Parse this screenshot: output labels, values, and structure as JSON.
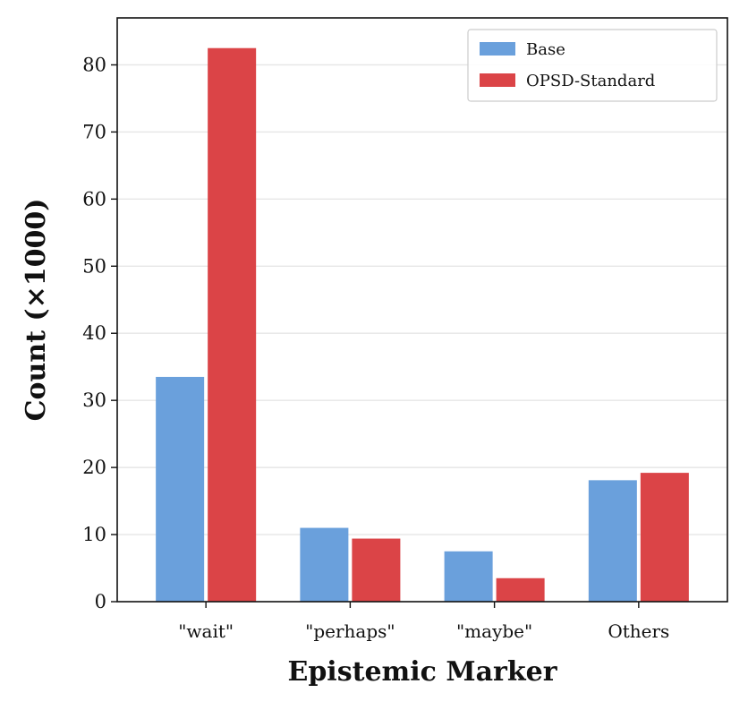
{
  "chart_data": {
    "type": "bar",
    "xlabel": "Epistemic Marker",
    "ylabel": "Count (×1000)",
    "categories": [
      "\"wait\"",
      "\"perhaps\"",
      "\"maybe\"",
      "Others"
    ],
    "series": [
      {
        "name": "Base",
        "color": "#6aa0dc",
        "values": [
          33.5,
          11.0,
          7.5,
          18.1
        ]
      },
      {
        "name": "OPSD-Standard",
        "color": "#db4447",
        "values": [
          82.5,
          9.4,
          3.5,
          19.2
        ]
      }
    ],
    "ylim": [
      0,
      87
    ],
    "yticks": [
      0,
      10,
      20,
      30,
      40,
      50,
      60,
      70,
      80
    ],
    "grid": "y",
    "legend_position": "top-right"
  }
}
